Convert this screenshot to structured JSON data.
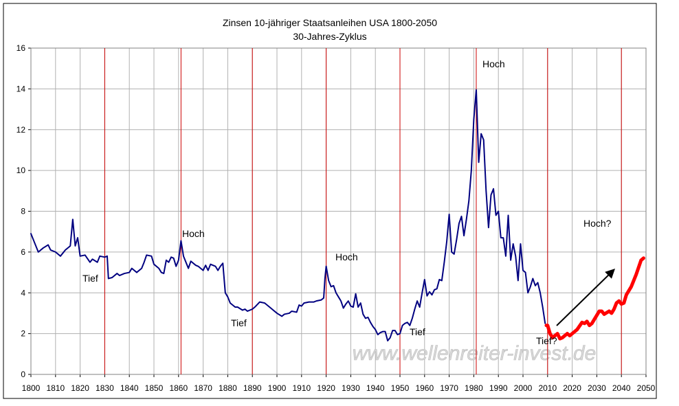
{
  "chart_data": {
    "type": "line",
    "title": "Zinsen 10-jähriger Staatsanleihen USA 1800-2050",
    "subtitle": "30-Jahres-Zyklus",
    "xlim": [
      1800,
      2050
    ],
    "ylim": [
      0,
      16
    ],
    "xticks": [
      1800,
      1810,
      1820,
      1830,
      1840,
      1850,
      1860,
      1870,
      1880,
      1890,
      1900,
      1910,
      1920,
      1930,
      1940,
      1950,
      1960,
      1970,
      1980,
      1990,
      2000,
      2010,
      2020,
      2030,
      2040,
      2050
    ],
    "yticks": [
      0,
      2,
      4,
      6,
      8,
      10,
      12,
      14,
      16
    ],
    "grid": true,
    "reference_lines": {
      "color": "#cc0000",
      "x": [
        1830,
        1861,
        1890,
        1920,
        1950,
        1981,
        2010,
        2040
      ]
    },
    "annotations": [
      "Tief",
      "Hoch",
      "Tief",
      "Hoch",
      "Tief",
      "Hoch",
      "Hoch?",
      "Tief?"
    ],
    "watermark": "www.wellenreiter-invest.de",
    "series": [
      {
        "color": "#000080",
        "x": [
          1800,
          1801,
          1803,
          1805,
          1807,
          1808,
          1810,
          1812,
          1814,
          1816,
          1817,
          1818,
          1819,
          1820,
          1822,
          1824,
          1825,
          1827,
          1828,
          1830,
          1831,
          1831.5,
          1833,
          1835,
          1836,
          1838,
          1840,
          1841,
          1843,
          1845,
          1846,
          1847,
          1849,
          1850,
          1852,
          1853,
          1854,
          1855,
          1856,
          1857,
          1858,
          1859,
          1860,
          1861,
          1862,
          1864,
          1865,
          1867,
          1868,
          1870,
          1871,
          1872,
          1873,
          1875,
          1876,
          1877,
          1878,
          1879,
          1880,
          1881,
          1883,
          1884,
          1886,
          1887,
          1888,
          1890,
          1891,
          1893,
          1895,
          1897,
          1898,
          1900,
          1902,
          1903,
          1905,
          1906,
          1908,
          1909,
          1910,
          1911,
          1913,
          1915,
          1916,
          1918,
          1919,
          1919.5,
          1920,
          1921,
          1922,
          1923,
          1924,
          1925,
          1926,
          1927,
          1928,
          1929,
          1930,
          1931,
          1932,
          1933,
          1934,
          1935,
          1936,
          1937,
          1938,
          1939,
          1940,
          1941,
          1942,
          1943,
          1944,
          1945,
          1946,
          1947,
          1948,
          1949,
          1950,
          1951,
          1952,
          1953,
          1954,
          1955,
          1956,
          1957,
          1958,
          1959,
          1960,
          1961,
          1962,
          1963,
          1964,
          1965,
          1966,
          1967,
          1968,
          1969,
          1970,
          1971,
          1972,
          1973,
          1974,
          1975,
          1976,
          1977,
          1978,
          1979,
          1980,
          1981,
          1982,
          1983,
          1984,
          1985,
          1986,
          1987,
          1988,
          1989,
          1990,
          1991,
          1992,
          1993,
          1994,
          1995,
          1996,
          1997,
          1998,
          1999,
          2000,
          2001,
          2002,
          2003,
          2004,
          2005,
          2006,
          2007,
          2008,
          2009
        ],
        "values": [
          6.9,
          6.6,
          6.0,
          6.2,
          6.35,
          6.1,
          6.0,
          5.8,
          6.1,
          6.3,
          7.6,
          6.3,
          6.7,
          5.8,
          5.85,
          5.5,
          5.65,
          5.5,
          5.8,
          5.75,
          5.8,
          4.7,
          4.75,
          4.95,
          4.85,
          4.95,
          5.0,
          5.2,
          5.0,
          5.2,
          5.5,
          5.85,
          5.8,
          5.4,
          5.2,
          5.0,
          4.95,
          5.6,
          5.5,
          5.75,
          5.7,
          5.3,
          5.6,
          6.55,
          5.8,
          5.2,
          5.55,
          5.35,
          5.3,
          5.1,
          5.35,
          5.1,
          5.4,
          5.3,
          5.1,
          5.3,
          5.45,
          4.0,
          3.8,
          3.5,
          3.3,
          3.3,
          3.15,
          3.2,
          3.1,
          3.2,
          3.3,
          3.55,
          3.5,
          3.3,
          3.2,
          3.0,
          2.85,
          2.95,
          3.0,
          3.1,
          3.05,
          3.4,
          3.35,
          3.5,
          3.55,
          3.55,
          3.6,
          3.65,
          3.75,
          4.7,
          5.3,
          4.6,
          4.3,
          4.35,
          4.0,
          3.8,
          3.6,
          3.25,
          3.45,
          3.6,
          3.35,
          3.3,
          3.95,
          3.3,
          3.5,
          2.95,
          2.75,
          2.8,
          2.55,
          2.35,
          2.2,
          1.95,
          2.05,
          2.1,
          2.1,
          1.65,
          1.8,
          2.15,
          2.15,
          1.95,
          2.0,
          2.4,
          2.5,
          2.55,
          2.4,
          2.75,
          3.2,
          3.6,
          3.3,
          4.0,
          4.65,
          3.85,
          4.05,
          3.9,
          4.15,
          4.2,
          4.65,
          4.6,
          5.5,
          6.5,
          7.85,
          6.0,
          5.9,
          6.6,
          7.4,
          7.75,
          6.8,
          7.6,
          8.5,
          10.0,
          12.5,
          13.95,
          10.4,
          11.8,
          11.5,
          9.0,
          7.2,
          8.8,
          9.1,
          7.8,
          8.0,
          6.7,
          6.7,
          5.8,
          7.8,
          5.6,
          6.4,
          5.8,
          4.6,
          6.4,
          5.1,
          5.0,
          4.0,
          4.3,
          4.7,
          4.35,
          4.5,
          4.0,
          3.3,
          2.5
        ]
      },
      {
        "color": "#ff0000",
        "x": [
          2009.5,
          2010,
          2011,
          2012,
          2013,
          2014,
          2015,
          2016,
          2017,
          2018,
          2019,
          2020,
          2022,
          2024,
          2025,
          2026,
          2027,
          2028,
          2030,
          2031,
          2032,
          2033,
          2035,
          2036,
          2037,
          2038,
          2039,
          2040,
          2041,
          2042,
          2044,
          2046,
          2048,
          2049
        ],
        "values": [
          2.4,
          2.4,
          2.0,
          1.8,
          1.9,
          2.0,
          1.75,
          1.8,
          1.9,
          2.0,
          1.9,
          2.0,
          2.2,
          2.55,
          2.5,
          2.6,
          2.4,
          2.5,
          2.9,
          3.1,
          3.1,
          2.95,
          3.1,
          3.0,
          3.2,
          3.5,
          3.6,
          3.45,
          3.5,
          3.9,
          4.3,
          4.9,
          5.6,
          5.7
        ]
      }
    ]
  }
}
